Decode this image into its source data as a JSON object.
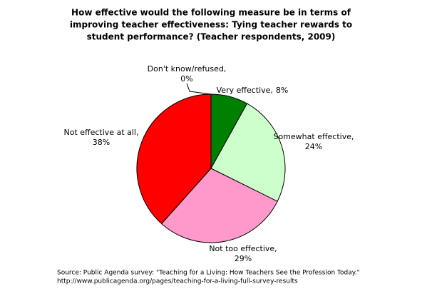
{
  "chart_data": {
    "type": "pie",
    "title": [
      "How effective would the following measure be in terms of",
      "improving teacher effectiveness: Tying teacher rewards to",
      "student performance? (Teacher respondents, 2009)"
    ],
    "categories": [
      "Very effective,",
      "Somewhat effective,",
      "Not too effective,",
      "Not effective at all,",
      "Don't know/refused,"
    ],
    "values": [
      8,
      24,
      29,
      38,
      0
    ],
    "value_labels": [
      "8%",
      "24%",
      "29%",
      "38%",
      "0%"
    ],
    "colors": [
      "#008000",
      "#ccffcc",
      "#ff99cc",
      "#ff0000",
      "#ffffff"
    ],
    "source": [
      "Source: Public Agenda survey: \"Teaching for a Living: How Teachers See the Profession Today.\"",
      "http://www.publicagenda.org/pages/teaching-for-a-living-full-survey-results"
    ]
  }
}
